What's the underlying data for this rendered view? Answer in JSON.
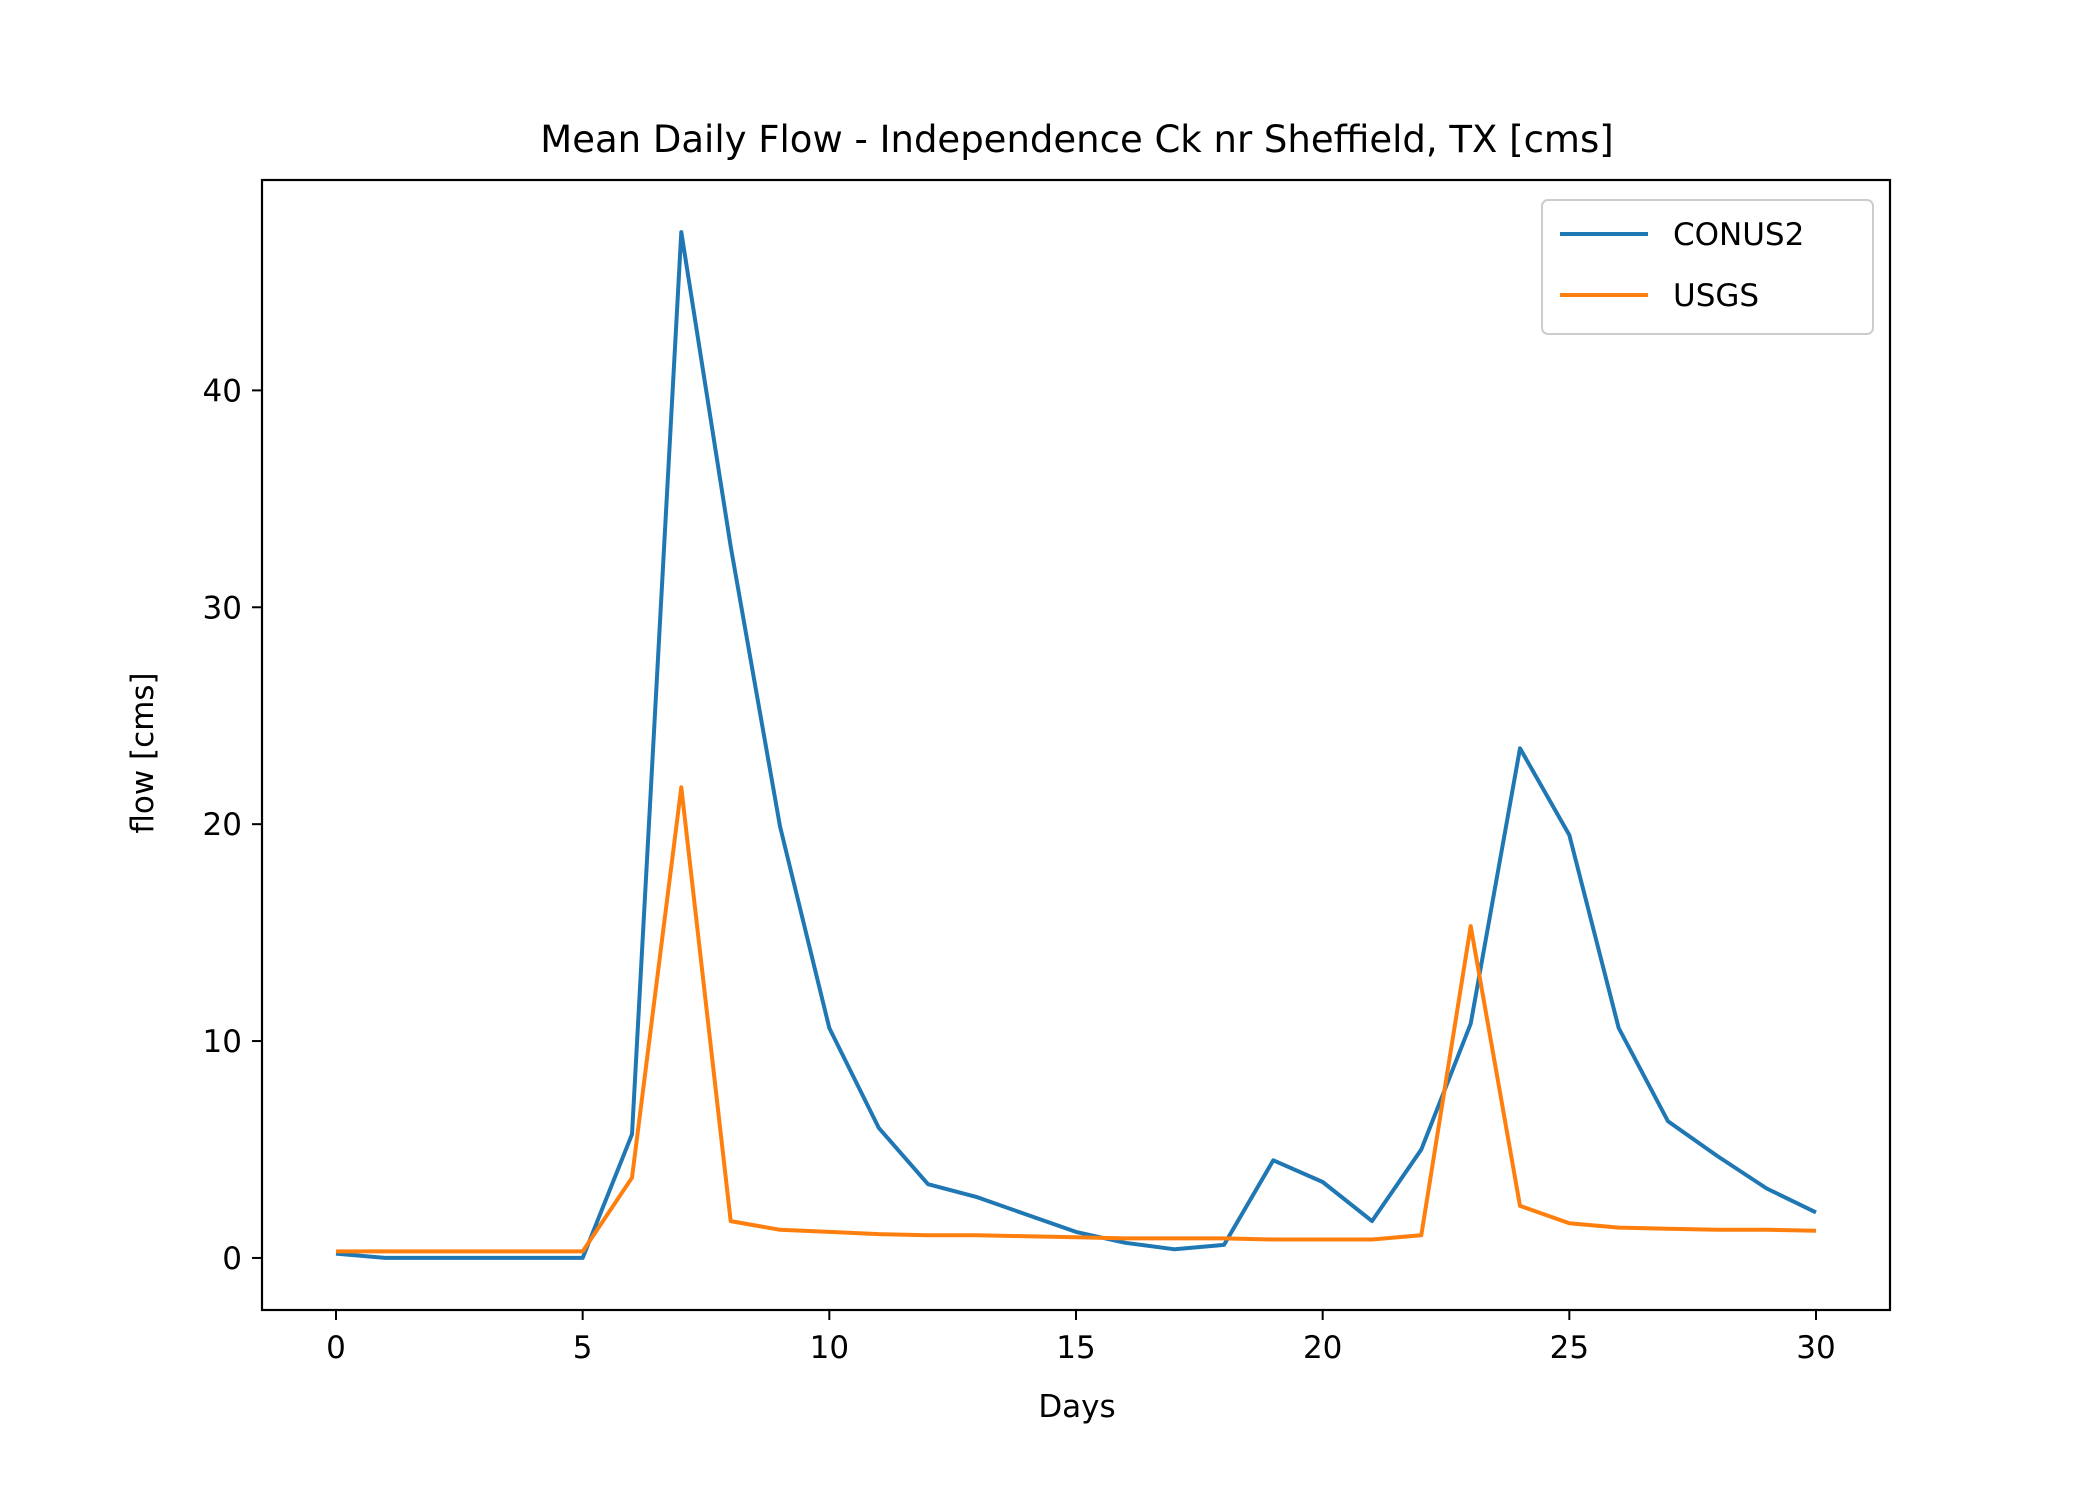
{
  "chart_data": {
    "type": "line",
    "title": "Mean Daily Flow - Independence Ck nr Sheffield, TX [cms]",
    "xlabel": "Days",
    "ylabel": "flow [cms]",
    "xlim": [
      -1.5,
      31.5
    ],
    "ylim": [
      -2.4,
      49.7
    ],
    "xticks": [
      0,
      5,
      10,
      15,
      20,
      25,
      30
    ],
    "yticks": [
      0,
      10,
      20,
      30,
      40
    ],
    "grid": false,
    "legend_position": "top-right",
    "x": [
      0,
      1,
      2,
      3,
      4,
      5,
      6,
      7,
      8,
      9,
      10,
      11,
      12,
      13,
      14,
      15,
      16,
      17,
      18,
      19,
      20,
      21,
      22,
      23,
      24,
      25,
      26,
      27,
      28,
      29,
      30
    ],
    "series": [
      {
        "name": "CONUS2",
        "color": "#1f77b4",
        "values": [
          0.2,
          0.0,
          0.0,
          0.0,
          0.0,
          0.0,
          5.7,
          47.3,
          32.8,
          19.9,
          10.6,
          6.0,
          3.4,
          2.8,
          2.0,
          1.2,
          0.7,
          0.4,
          0.6,
          4.5,
          3.5,
          1.7,
          5.0,
          10.8,
          23.5,
          19.5,
          10.6,
          6.3,
          4.7,
          3.2,
          2.1
        ]
      },
      {
        "name": "USGS",
        "color": "#ff7f0e",
        "values": [
          0.3,
          0.3,
          0.3,
          0.3,
          0.3,
          0.3,
          3.7,
          21.7,
          1.7,
          1.3,
          1.2,
          1.1,
          1.05,
          1.05,
          1.0,
          0.95,
          0.9,
          0.9,
          0.9,
          0.85,
          0.85,
          0.85,
          1.05,
          15.3,
          2.4,
          1.6,
          1.4,
          1.35,
          1.3,
          1.3,
          1.25
        ]
      }
    ]
  }
}
